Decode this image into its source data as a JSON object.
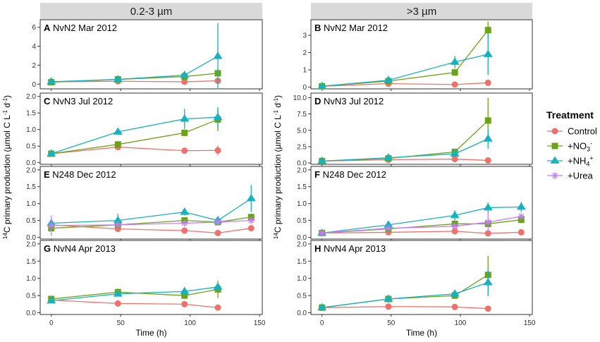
{
  "chart_data": {
    "type": "line",
    "columns": [
      {
        "label": "0.2-3 µm"
      },
      {
        "label": ">3 µm"
      }
    ],
    "ylabel": {
      "sup": "14",
      "main": "C primary production (µmol C L",
      "sup2": "-1",
      "mid": " d",
      "sup3": "-1",
      "end": ")"
    },
    "xlabel": "Time (h)",
    "xlim": [
      -8,
      152
    ],
    "xticks": [
      0,
      50,
      100,
      150
    ],
    "legend": {
      "title": "Treatment",
      "position": "right",
      "items": [
        {
          "label": "Control",
          "series": "control"
        },
        {
          "label": "+NO",
          "sub": "3",
          "sup": "-",
          "series": "no3"
        },
        {
          "label": "+NH",
          "sub": "4",
          "sup": "+",
          "series": "nh4"
        },
        {
          "label": "+Urea",
          "series": "urea"
        }
      ]
    },
    "series_styles": {
      "control": {
        "color": "#f0706a",
        "marker": "circle"
      },
      "no3": {
        "color": "#6aa416",
        "marker": "square"
      },
      "nh4": {
        "color": "#17b1bf",
        "marker": "triangle"
      },
      "urea": {
        "color": "#c77cff",
        "marker": "asterisk"
      }
    },
    "panels": [
      {
        "letter": "A",
        "title": "NvN2 Mar 2012",
        "col": 0,
        "row": 0,
        "ylim": [
          -0.5,
          6.8
        ],
        "yticks": [
          0,
          2,
          4,
          6
        ],
        "series": [
          {
            "name": "control",
            "x": [
              0,
              48,
              96,
              120
            ],
            "y": [
              0.25,
              0.3,
              0.25,
              0.35
            ],
            "err": [
              0.05,
              0.05,
              0.05,
              0.1
            ]
          },
          {
            "name": "no3",
            "x": [
              0,
              48,
              96,
              120
            ],
            "y": [
              0.2,
              0.5,
              0.8,
              1.15
            ],
            "err": [
              0.1,
              0.1,
              0.1,
              0.2
            ]
          },
          {
            "name": "nh4",
            "x": [
              0,
              48,
              96,
              120
            ],
            "y": [
              0.25,
              0.5,
              0.95,
              2.95
            ],
            "err": [
              0.1,
              0.1,
              0.2,
              3.5
            ]
          }
        ]
      },
      {
        "letter": "B",
        "title": "NvN2 Mar 2012",
        "col": 1,
        "row": 0,
        "ylim": [
          -0.1,
          3.9
        ],
        "yticks": [
          0,
          1,
          2,
          3
        ],
        "series": [
          {
            "name": "control",
            "x": [
              0,
              48,
              96,
              120
            ],
            "y": [
              0.05,
              0.2,
              0.15,
              0.25
            ],
            "err": [
              0.05,
              0.05,
              0.05,
              0.05
            ]
          },
          {
            "name": "no3",
            "x": [
              0,
              48,
              96,
              120
            ],
            "y": [
              0.05,
              0.35,
              0.85,
              3.3
            ],
            "err": [
              0.05,
              0.1,
              0.2,
              0.5
            ]
          },
          {
            "name": "nh4",
            "x": [
              0,
              48,
              96,
              120
            ],
            "y": [
              0.05,
              0.4,
              1.45,
              1.9
            ],
            "err": [
              0.05,
              0.1,
              0.35,
              1.2
            ]
          }
        ]
      },
      {
        "letter": "C",
        "title": "NvN3 Jul 2012",
        "col": 0,
        "row": 1,
        "ylim": [
          -0.05,
          2.1
        ],
        "yticks": [
          0,
          0.5,
          1.0,
          1.5,
          2.0
        ],
        "ydec": 1,
        "series": [
          {
            "name": "control",
            "x": [
              0,
              48,
              96,
              120
            ],
            "y": [
              0.27,
              0.47,
              0.36,
              0.37
            ],
            "err": [
              0.05,
              0.05,
              0.05,
              0.15
            ]
          },
          {
            "name": "no3",
            "x": [
              0,
              48,
              96,
              120
            ],
            "y": [
              0.27,
              0.55,
              0.9,
              1.3
            ],
            "err": [
              0.05,
              0.05,
              0.1,
              0.35
            ]
          },
          {
            "name": "nh4",
            "x": [
              0,
              48,
              96,
              120
            ],
            "y": [
              0.27,
              0.93,
              1.32,
              1.37
            ],
            "err": [
              0.05,
              0.07,
              0.3,
              0.3
            ]
          }
        ]
      },
      {
        "letter": "D",
        "title": "NvN3 Jul 2012",
        "col": 1,
        "row": 1,
        "ylim": [
          -0.2,
          10.7
        ],
        "yticks": [
          0,
          2.5,
          5.0,
          7.5,
          10.0
        ],
        "ydec": 1,
        "series": [
          {
            "name": "control",
            "x": [
              0,
              48,
              96,
              120
            ],
            "y": [
              0.3,
              0.5,
              0.6,
              0.4
            ],
            "err": [
              0.1,
              0.1,
              0.1,
              0.1
            ]
          },
          {
            "name": "no3",
            "x": [
              0,
              48,
              96,
              120
            ],
            "y": [
              0.3,
              0.7,
              1.7,
              6.5
            ],
            "err": [
              0.1,
              0.2,
              0.5,
              3.5
            ]
          },
          {
            "name": "nh4",
            "x": [
              0,
              48,
              96,
              120
            ],
            "y": [
              0.3,
              0.8,
              1.4,
              3.7
            ],
            "err": [
              0.1,
              0.2,
              0.3,
              1.5
            ]
          }
        ]
      },
      {
        "letter": "E",
        "title": "N248 Dec 2012",
        "col": 0,
        "row": 2,
        "ylim": [
          -0.05,
          2.1
        ],
        "yticks": [
          0,
          0.5,
          1.0,
          1.5,
          2.0
        ],
        "ydec": 1,
        "series": [
          {
            "name": "control",
            "x": [
              0,
              48,
              96,
              120,
              144
            ],
            "y": [
              0.37,
              0.25,
              0.2,
              0.13,
              0.27
            ],
            "err": [
              0.05,
              0.05,
              0.05,
              0.05,
              0.05
            ]
          },
          {
            "name": "no3",
            "x": [
              0,
              48,
              96,
              120,
              144
            ],
            "y": [
              0.27,
              0.37,
              0.5,
              0.45,
              0.6
            ],
            "err": [
              0.05,
              0.05,
              0.05,
              0.05,
              0.1
            ]
          },
          {
            "name": "nh4",
            "x": [
              0,
              48,
              96,
              120,
              144
            ],
            "y": [
              0.42,
              0.5,
              0.75,
              0.5,
              1.15
            ],
            "err": [
              0.1,
              0.2,
              0.1,
              0.1,
              0.4
            ]
          },
          {
            "name": "urea",
            "x": [
              0,
              48,
              96,
              120,
              144
            ],
            "y": [
              0.35,
              0.37,
              0.42,
              0.45,
              0.5
            ],
            "err": [
              0.3,
              0.1,
              0.1,
              0.05,
              0.05
            ]
          }
        ]
      },
      {
        "letter": "F",
        "title": "N248 Dec 2012",
        "col": 1,
        "row": 2,
        "ylim": [
          -0.05,
          2.1
        ],
        "yticks": [
          0,
          0.5,
          1.0,
          1.5,
          2.0
        ],
        "ydec": 1,
        "series": [
          {
            "name": "control",
            "x": [
              0,
              48,
              96,
              120,
              144
            ],
            "y": [
              0.13,
              0.15,
              0.18,
              0.12,
              0.15
            ],
            "err": [
              0.05,
              0.05,
              0.05,
              0.05,
              0.05
            ]
          },
          {
            "name": "no3",
            "x": [
              0,
              48,
              96,
              120,
              144
            ],
            "y": [
              0.13,
              0.25,
              0.4,
              0.4,
              0.52
            ],
            "err": [
              0.05,
              0.05,
              0.05,
              0.1,
              0.1
            ]
          },
          {
            "name": "nh4",
            "x": [
              0,
              48,
              96,
              120,
              144
            ],
            "y": [
              0.13,
              0.37,
              0.65,
              0.88,
              0.9
            ],
            "err": [
              0.05,
              0.1,
              0.15,
              0.15,
              0.15
            ]
          },
          {
            "name": "urea",
            "x": [
              0,
              48,
              96,
              120,
              144
            ],
            "y": [
              0.13,
              0.27,
              0.33,
              0.45,
              0.62
            ],
            "err": [
              0.05,
              0.05,
              0.1,
              0.3,
              0.1
            ]
          }
        ]
      },
      {
        "letter": "G",
        "title": "NvN4 Apr 2013",
        "col": 0,
        "row": 3,
        "ylim": [
          -0.05,
          2.1
        ],
        "yticks": [
          0,
          0.5,
          1.0,
          1.5,
          2.0
        ],
        "ydec": 1,
        "series": [
          {
            "name": "control",
            "x": [
              0,
              48,
              96,
              120
            ],
            "y": [
              0.37,
              0.27,
              0.25,
              0.15
            ],
            "err": [
              0.05,
              0.05,
              0.05,
              0.05
            ]
          },
          {
            "name": "no3",
            "x": [
              0,
              48,
              96,
              120
            ],
            "y": [
              0.4,
              0.6,
              0.5,
              0.68
            ],
            "err": [
              0.05,
              0.1,
              0.1,
              0.25
            ]
          },
          {
            "name": "nh4",
            "x": [
              0,
              48,
              96,
              120
            ],
            "y": [
              0.35,
              0.55,
              0.62,
              0.75
            ],
            "err": [
              0.05,
              0.05,
              0.05,
              0.1
            ]
          }
        ]
      },
      {
        "letter": "H",
        "title": "NvN4 Apr 2013",
        "col": 1,
        "row": 3,
        "ylim": [
          -0.05,
          2.1
        ],
        "yticks": [
          0,
          0.5,
          1.0,
          1.5,
          2.0
        ],
        "ydec": 1,
        "series": [
          {
            "name": "control",
            "x": [
              0,
              48,
              96,
              120
            ],
            "y": [
              0.15,
              0.18,
              0.17,
              0.12
            ],
            "err": [
              0.05,
              0.05,
              0.05,
              0.05
            ]
          },
          {
            "name": "no3",
            "x": [
              0,
              48,
              96,
              120
            ],
            "y": [
              0.15,
              0.4,
              0.5,
              1.1
            ],
            "err": [
              0.05,
              0.1,
              0.1,
              0.55
            ]
          },
          {
            "name": "nh4",
            "x": [
              0,
              48,
              96,
              120
            ],
            "y": [
              0.15,
              0.4,
              0.55,
              0.88
            ],
            "err": [
              0.05,
              0.1,
              0.1,
              0.4
            ]
          }
        ]
      }
    ]
  }
}
